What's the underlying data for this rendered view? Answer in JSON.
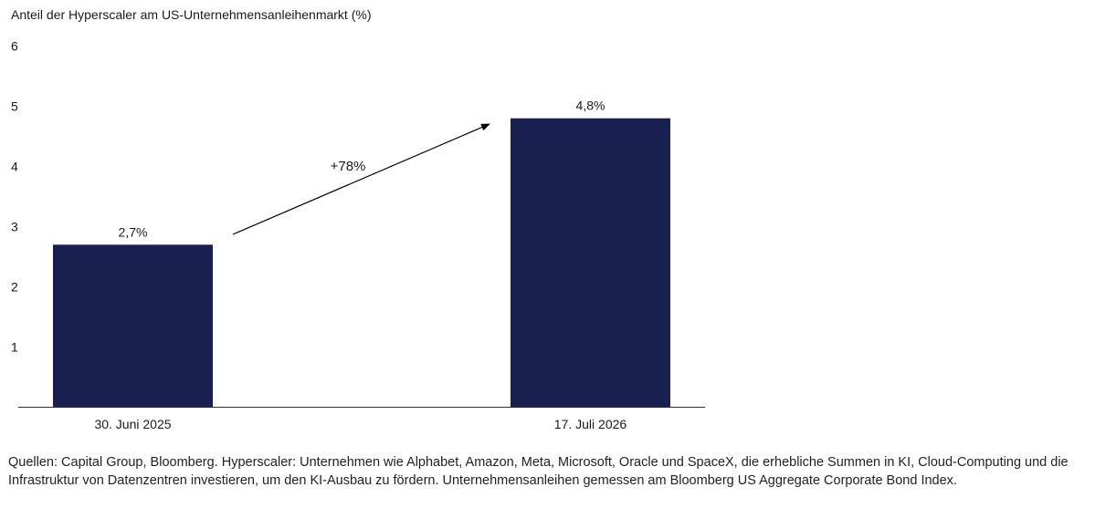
{
  "chart_data": {
    "type": "bar",
    "title": "Anteil der Hyperscaler am US-Unternehmensanleihenmarkt (%)",
    "categories": [
      "30. Juni 2025",
      "17. Juli 2026"
    ],
    "values": [
      2.7,
      4.8
    ],
    "data_labels": [
      "2,7%",
      "4,8%"
    ],
    "yticks": [
      "1",
      "2",
      "3",
      "4",
      "5",
      "6"
    ],
    "ylim": [
      0,
      6
    ],
    "grid": false,
    "annotation": "+78%",
    "bar_color": "#18214f"
  },
  "source_note": "Quellen: Capital Group, Bloomberg. Hyperscaler: Unternehmen wie Alphabet, Amazon, Meta, Microsoft, Oracle und SpaceX, die erhebliche Summen in KI, Cloud-Computing und die Infrastruktur von Datenzentren investieren, um den KI-Ausbau zu fördern. Unternehmensanleihen gemessen am Bloomberg US Aggregate Corporate Bond Index."
}
